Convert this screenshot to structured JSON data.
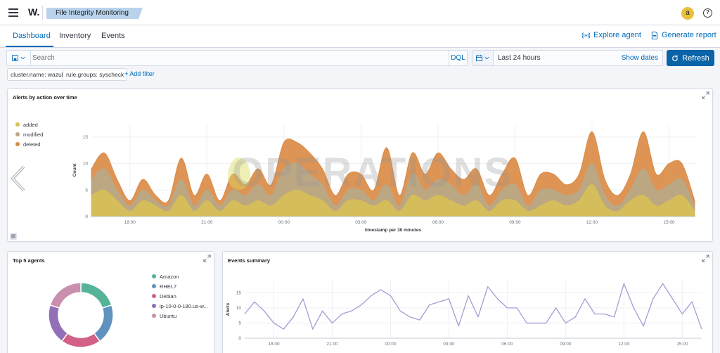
{
  "header": {
    "menu_icon": "hamburger-icon",
    "brand": "W.",
    "breadcrumb": "File Integrity Monitoring",
    "avatar_letter": "a",
    "help_icon": "help-icon"
  },
  "tabs": {
    "items": [
      "Dashboard",
      "Inventory",
      "Events"
    ],
    "active": "Dashboard",
    "explore_agent": "Explore agent",
    "generate_report": "Generate report"
  },
  "search": {
    "placeholder": "Search",
    "language": "DQL"
  },
  "date": {
    "range": "Last 24 hours",
    "show_dates": "Show dates",
    "refresh": "Refresh"
  },
  "filters": {
    "pills": [
      "cluster.name: wazuh",
      "rule.groups: syscheck"
    ],
    "add_filter": "+ Add filter"
  },
  "colors": {
    "added": "#d6bf57",
    "modified": "#b9a888",
    "deleted": "#da8b45",
    "accent": "#006bb8",
    "refresh_bg": "#0b64a8"
  },
  "watermark": "OPERATIONS",
  "alerts_panel": {
    "title": "Alerts by action over time"
  },
  "agents_panel": {
    "title": "Top 5 agents"
  },
  "events_panel": {
    "title": "Events summary"
  },
  "chart_data": [
    {
      "type": "area",
      "title": "Alerts by action over time",
      "xlabel": "timestamp per 30 minutes",
      "ylabel": "Count",
      "ylim": [
        0,
        17.5
      ],
      "yticks": [
        0,
        5,
        10,
        15
      ],
      "xticks": [
        "18:00",
        "21:00",
        "00:00",
        "03:00",
        "06:00",
        "09:00",
        "12:00",
        "15:00"
      ],
      "stacked": true,
      "legend_position": "left",
      "x": [
        "16:30",
        "17:00",
        "17:30",
        "18:00",
        "18:30",
        "19:00",
        "19:30",
        "20:00",
        "20:30",
        "21:00",
        "21:30",
        "22:00",
        "22:30",
        "23:00",
        "23:30",
        "00:00",
        "00:30",
        "01:00",
        "01:30",
        "02:00",
        "02:30",
        "03:00",
        "03:30",
        "04:00",
        "04:30",
        "05:00",
        "05:30",
        "06:00",
        "06:30",
        "07:00",
        "07:30",
        "08:00",
        "08:30",
        "09:00",
        "09:30",
        "10:00",
        "10:30",
        "11:00",
        "11:30",
        "12:00",
        "12:30",
        "13:00",
        "13:30",
        "14:00",
        "14:30",
        "15:00",
        "15:30",
        "16:00"
      ],
      "series": [
        {
          "name": "added",
          "values": [
            4,
            5,
            3,
            1,
            3,
            2,
            1,
            4,
            1,
            3,
            1,
            3,
            2,
            3,
            2,
            4,
            5,
            4,
            3,
            1,
            3,
            3,
            2,
            3,
            1,
            4,
            3,
            4,
            3,
            2,
            3,
            1,
            3,
            3,
            1,
            2,
            3,
            2,
            3,
            6,
            2,
            1,
            3,
            4,
            2,
            3,
            4,
            1
          ]
        },
        {
          "name": "modified",
          "values": [
            3,
            4,
            2,
            1,
            2,
            1,
            1,
            3,
            1,
            2,
            1,
            2,
            2,
            3,
            2,
            5,
            5,
            4,
            3,
            1,
            2,
            2,
            1,
            3,
            1,
            4,
            2,
            3,
            3,
            2,
            3,
            1,
            2,
            3,
            1,
            3,
            2,
            2,
            2,
            4,
            2,
            1,
            2,
            5,
            3,
            3,
            3,
            1
          ]
        },
        {
          "name": "deleted",
          "values": [
            2,
            3,
            2,
            1,
            2,
            1,
            1,
            4,
            2,
            3,
            1,
            3,
            2,
            3,
            2,
            5,
            4,
            4,
            3,
            2,
            3,
            3,
            2,
            7,
            2,
            4,
            3,
            5,
            3,
            3,
            3,
            2,
            3,
            5,
            2,
            3,
            3,
            2,
            3,
            6,
            3,
            2,
            3,
            7,
            3,
            4,
            3,
            1
          ]
        }
      ]
    },
    {
      "type": "pie",
      "title": "Top 5 agents",
      "donut": true,
      "labels": [
        "Amazon",
        "RHEL7",
        "Debian",
        "ip-10-0-0-180.us-w...",
        "Ubuntu"
      ],
      "values": [
        20,
        20,
        20,
        20,
        20
      ],
      "colors": [
        "#54b399",
        "#6092c0",
        "#d36086",
        "#9170b8",
        "#ca8eae"
      ]
    },
    {
      "type": "line",
      "title": "Events summary",
      "ylabel": "Alerts",
      "ylim": [
        0,
        19
      ],
      "yticks": [
        0,
        5,
        10,
        15
      ],
      "xticks": [
        "18:00",
        "21:00",
        "00:00",
        "03:00",
        "06:00",
        "09:00",
        "12:00",
        "15:00"
      ],
      "x": [
        "16:30",
        "17:00",
        "17:30",
        "18:00",
        "18:30",
        "19:00",
        "19:30",
        "20:00",
        "20:30",
        "21:00",
        "21:30",
        "22:00",
        "22:30",
        "23:00",
        "23:30",
        "00:00",
        "00:30",
        "01:00",
        "01:30",
        "02:00",
        "02:30",
        "03:00",
        "03:30",
        "04:00",
        "04:30",
        "05:00",
        "05:30",
        "06:00",
        "06:30",
        "07:00",
        "07:30",
        "08:00",
        "08:30",
        "09:00",
        "09:30",
        "10:00",
        "10:30",
        "11:00",
        "11:30",
        "12:00",
        "12:30",
        "13:00",
        "13:30",
        "14:00",
        "14:30",
        "15:00",
        "15:30",
        "16:00"
      ],
      "series": [
        {
          "name": "Alerts",
          "values": [
            8,
            12,
            9,
            5,
            3,
            7,
            13,
            3,
            9,
            5,
            8,
            9,
            11,
            14,
            16,
            14,
            9,
            7,
            6,
            11,
            12,
            13,
            4,
            14,
            7,
            17,
            13,
            10,
            10,
            5,
            5,
            5,
            10,
            5,
            7,
            13,
            8,
            8,
            7,
            18,
            10,
            4,
            13,
            18,
            13,
            8,
            12,
            3
          ]
        }
      ],
      "color": "#a99ad4"
    }
  ]
}
